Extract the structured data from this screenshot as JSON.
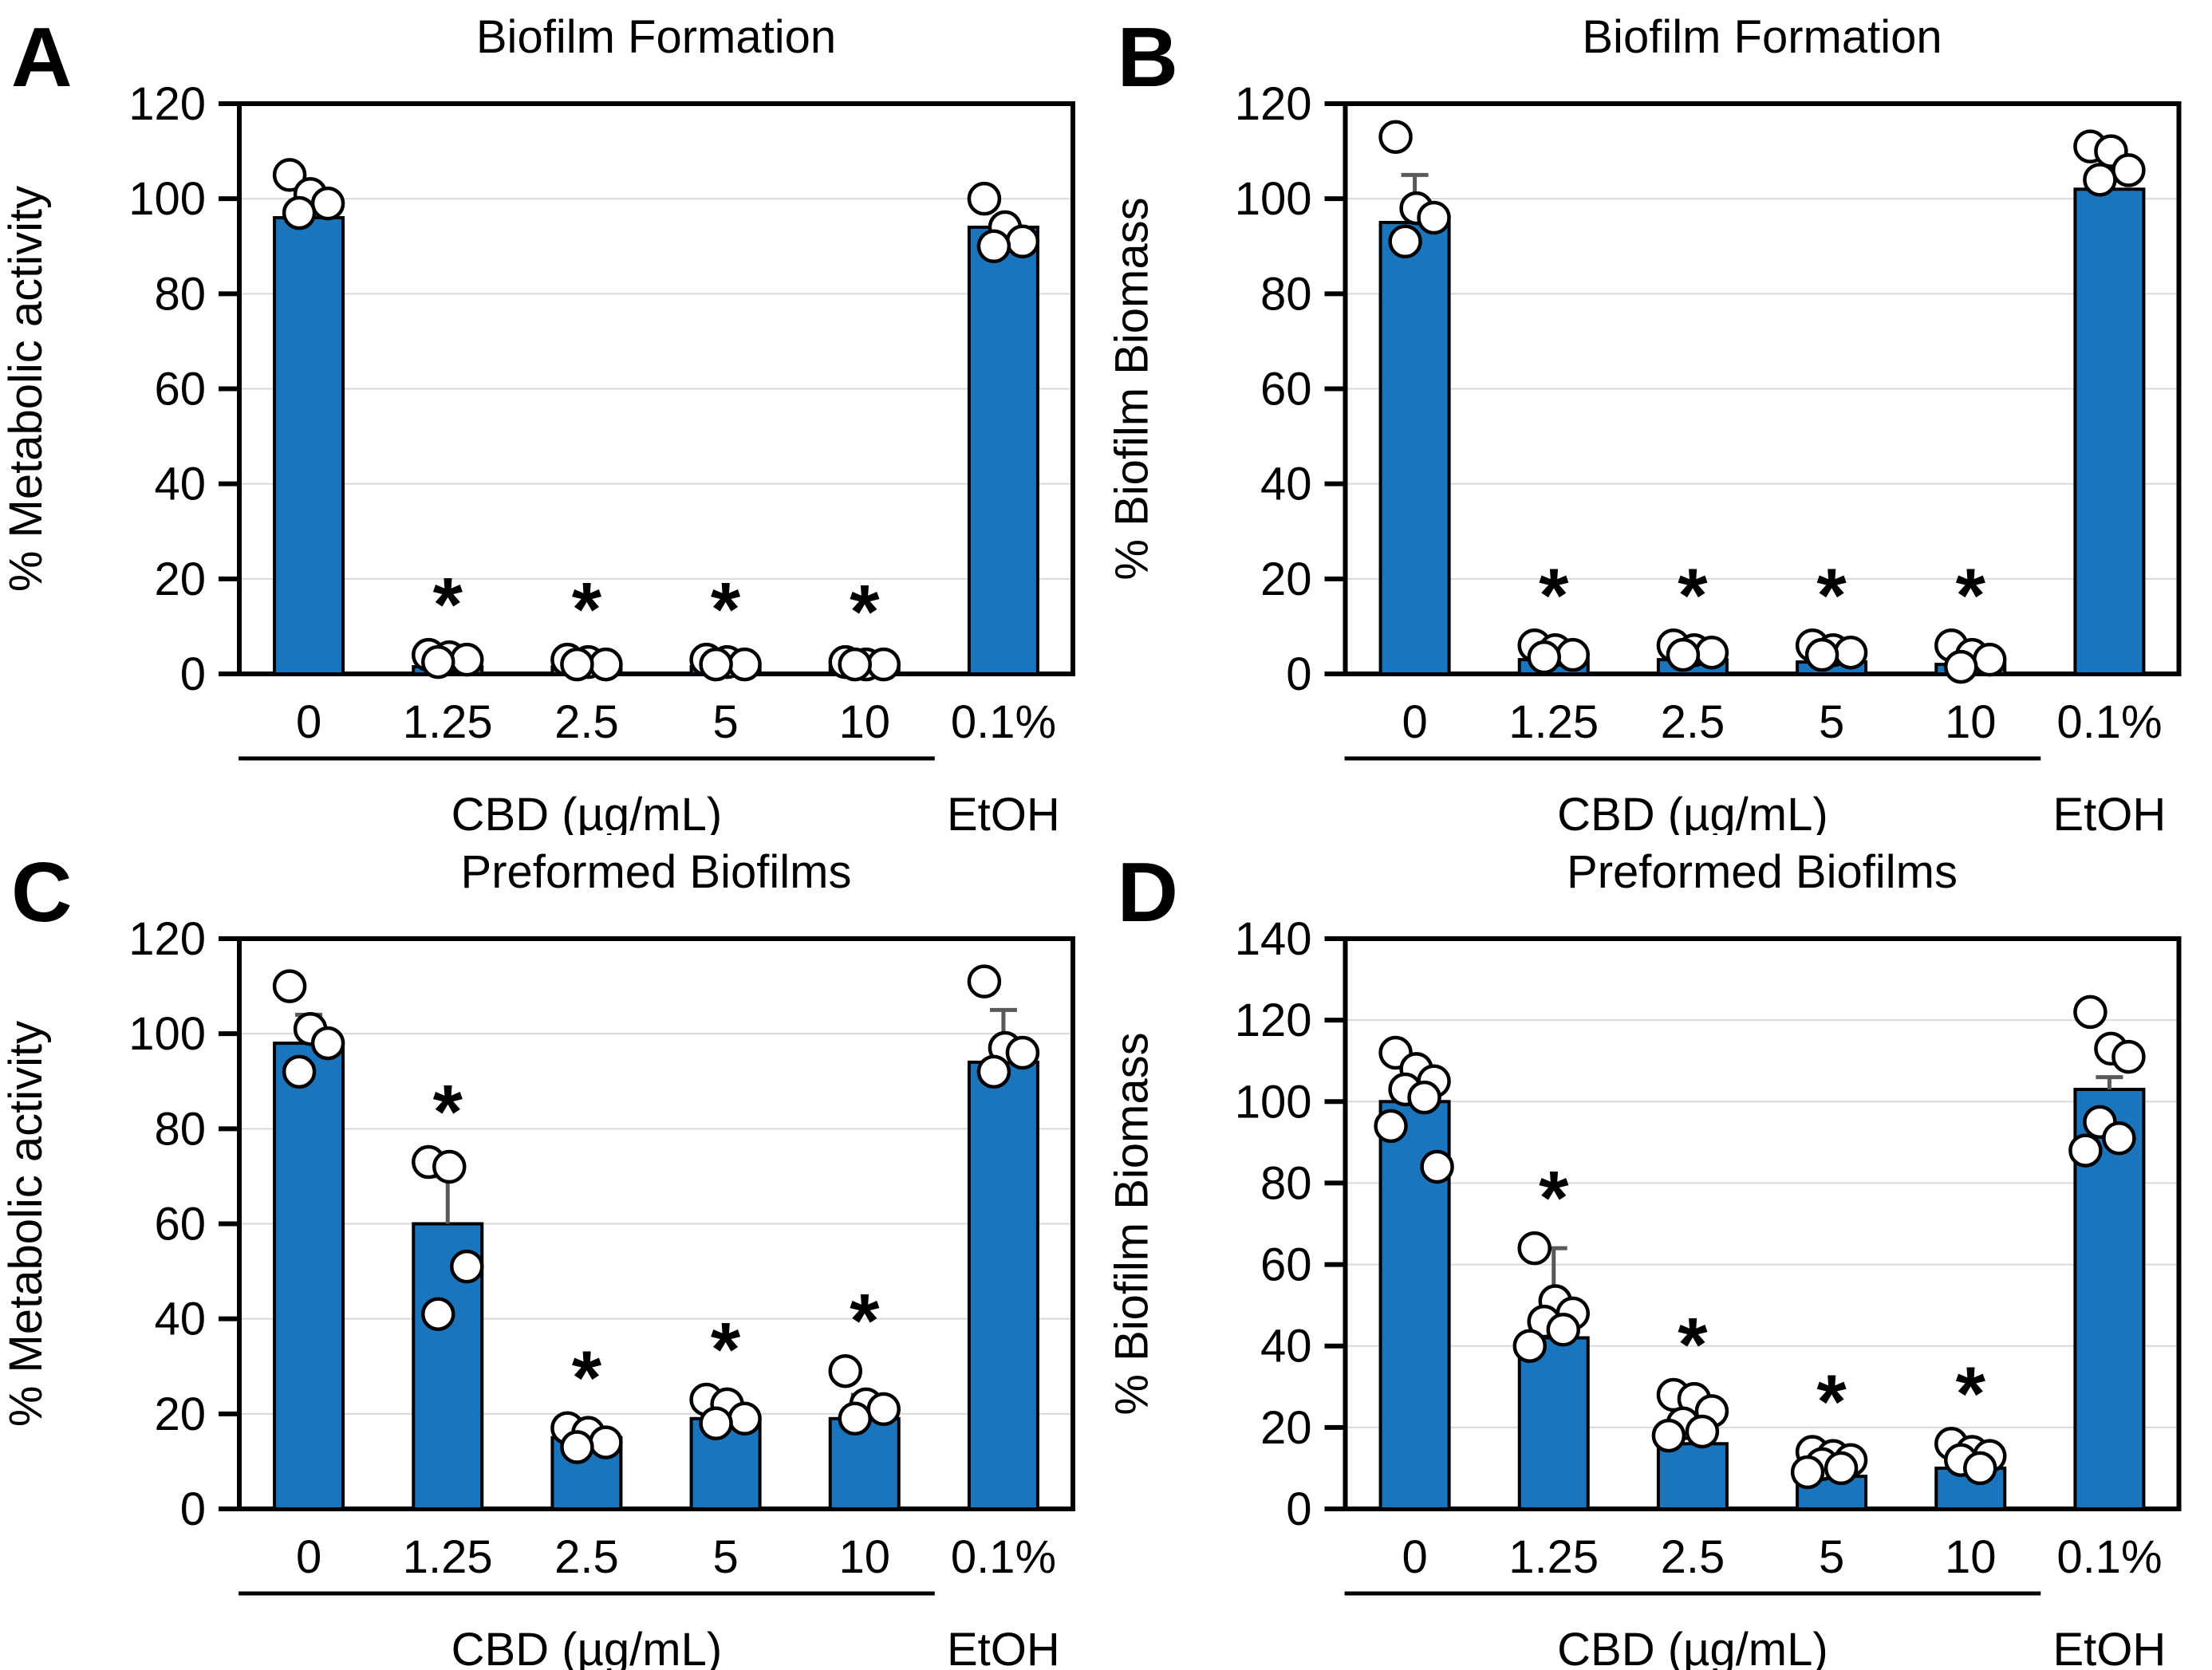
{
  "figure": {
    "description_labels": {
      "x_group_label": "CBD (µg/mL)",
      "control_line1": "0.1%",
      "control_line2": "EtOH"
    },
    "colors": {
      "bar_fill": "#1B75BC",
      "bar_stroke": "#000000",
      "dot_fill": "#FFFFFF",
      "dot_stroke": "#000000",
      "error_bar": "#595959",
      "gridline": "#D9D9D9",
      "frame": "#000000"
    }
  },
  "chart_data": [
    {
      "type": "bar",
      "panel": "A",
      "title": "Biofilm Formation",
      "ylabel": "% Metabolic activity",
      "xlabel_group": "CBD (µg/mL)",
      "control_label_lines": [
        "0.1%",
        "EtOH"
      ],
      "categories": [
        "0",
        "1.25",
        "2.5",
        "5",
        "10",
        "0.1% EtOH"
      ],
      "ylim": [
        0,
        120
      ],
      "ytick_step": 20,
      "grid": true,
      "legend": "none",
      "values": [
        96,
        1.5,
        1.5,
        1.5,
        1.5,
        94
      ],
      "errors": [
        null,
        null,
        null,
        null,
        null,
        null
      ],
      "points": [
        [
          105,
          101,
          99,
          97
        ],
        [
          4,
          3.5,
          3,
          2.5
        ],
        [
          3,
          2.5,
          2,
          2
        ],
        [
          3,
          2.5,
          2,
          2
        ],
        [
          2.5,
          2,
          2,
          2
        ],
        [
          100,
          94,
          91,
          90
        ]
      ],
      "significant": [
        false,
        true,
        true,
        true,
        true,
        false
      ]
    },
    {
      "type": "bar",
      "panel": "B",
      "title": "Biofilm Formation",
      "ylabel": "% Biofilm Biomass",
      "xlabel_group": "CBD (µg/mL)",
      "control_label_lines": [
        "0.1%",
        "EtOH"
      ],
      "categories": [
        "0",
        "1.25",
        "2.5",
        "5",
        "10",
        "0.1% EtOH"
      ],
      "ylim": [
        0,
        120
      ],
      "ytick_step": 20,
      "grid": true,
      "legend": "none",
      "values": [
        95,
        3,
        3,
        2.5,
        2,
        102
      ],
      "errors": [
        10,
        null,
        null,
        null,
        null,
        null
      ],
      "points": [
        [
          113,
          98,
          96,
          91
        ],
        [
          6,
          5,
          4,
          3.5
        ],
        [
          6,
          5,
          4.5,
          4
        ],
        [
          6,
          5,
          4.5,
          4
        ],
        [
          6,
          4,
          3,
          1.5
        ],
        [
          111,
          110,
          106,
          104
        ]
      ],
      "significant": [
        false,
        true,
        true,
        true,
        true,
        false
      ]
    },
    {
      "type": "bar",
      "panel": "C",
      "title": "Preformed Biofilms",
      "ylabel": "% Metabolic activity",
      "xlabel_group": "CBD (µg/mL)",
      "control_label_lines": [
        "0.1%",
        "EtOH"
      ],
      "categories": [
        "0",
        "1.25",
        "2.5",
        "5",
        "10",
        "0.1% EtOH"
      ],
      "ylim": [
        0,
        120
      ],
      "ytick_step": 20,
      "grid": true,
      "legend": "none",
      "values": [
        98,
        60,
        15,
        19,
        19,
        94
      ],
      "errors": [
        6,
        10,
        null,
        null,
        5,
        11
      ],
      "points": [
        [
          110,
          101,
          98,
          92
        ],
        [
          73,
          72,
          51,
          41
        ],
        [
          17,
          16,
          14,
          13
        ],
        [
          23,
          22,
          19,
          18
        ],
        [
          29,
          22,
          21,
          19
        ],
        [
          111,
          97,
          96,
          92
        ]
      ],
      "significant": [
        false,
        true,
        true,
        true,
        true,
        false
      ]
    },
    {
      "type": "bar",
      "panel": "D",
      "title": "Preformed Biofilms",
      "ylabel": "% Biofilm Biomass",
      "xlabel_group": "CBD (µg/mL)",
      "control_label_lines": [
        "0.1%",
        "EtOH"
      ],
      "categories": [
        "0",
        "1.25",
        "2.5",
        "5",
        "10",
        "0.1% EtOH"
      ],
      "ylim": [
        0,
        140
      ],
      "ytick_step": 20,
      "grid": true,
      "legend": "none",
      "values": [
        100,
        42,
        16,
        8,
        10,
        103
      ],
      "errors": [
        null,
        22,
        null,
        null,
        null,
        3
      ],
      "points": [
        [
          112,
          108,
          105,
          103,
          101,
          94,
          84
        ],
        [
          64,
          51,
          48,
          46,
          44,
          40
        ],
        [
          28,
          27,
          24,
          21,
          19,
          18
        ],
        [
          14,
          13,
          12,
          11,
          10,
          9
        ],
        [
          16,
          14,
          13,
          12,
          10
        ],
        [
          122,
          113,
          111,
          95,
          91,
          88
        ]
      ],
      "significant": [
        false,
        true,
        true,
        true,
        true,
        false
      ]
    }
  ]
}
